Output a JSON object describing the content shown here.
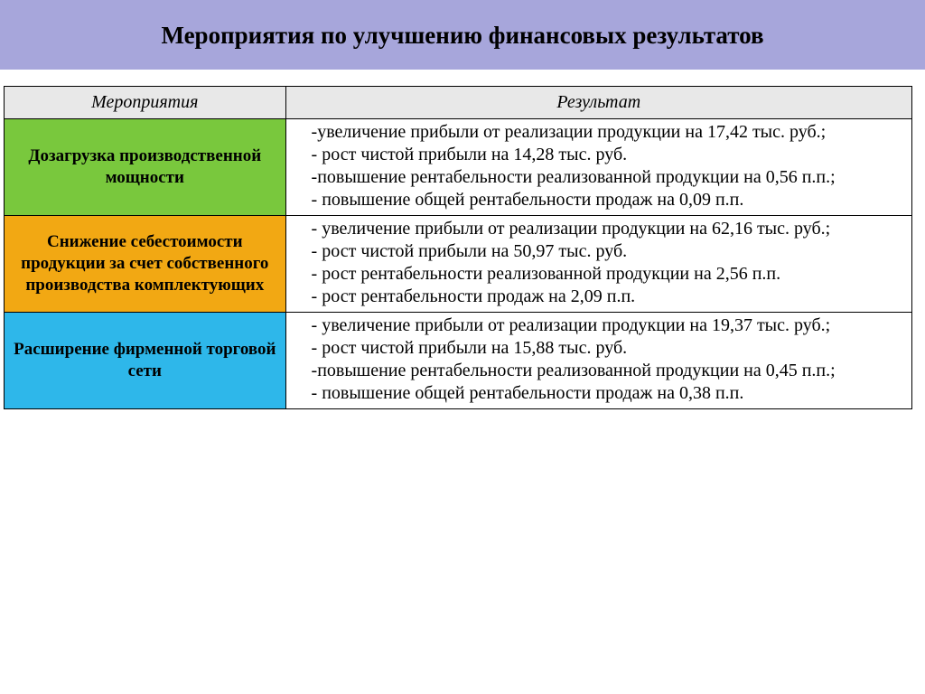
{
  "page": {
    "title": "Мероприятия по улучшению финансовых результатов",
    "title_bg": "#a7a6db",
    "header_bg": "#e8e8e8"
  },
  "table": {
    "columns": {
      "measures": "Мероприятия",
      "result": "Результат"
    },
    "rows": [
      {
        "measure": "Дозагрузка производственной мощности",
        "measure_bg": "#79c83d",
        "result_lines": [
          "-увеличение  прибыли  от  реализации  продукции  на    17,42  тыс. руб.;",
          "- рост чистой прибыли на 14,28 тыс. руб.",
          "-повышение  рентабельности  реализованной  продукции  на  0,56 п.п.;",
          "- повышение общей рентабельности продаж на  0,09 п.п."
        ]
      },
      {
        "measure": "Снижение себестоимости продукции за счет собственного производства комплектующих",
        "measure_bg": "#f2a813",
        "result_lines": [
          "- увеличение  прибыли  от  реализации  продукции  на  62,16  тыс. руб.;",
          "- рост чистой прибыли на 50,97 тыс. руб.",
          "-  рост  рентабельности  реализованной  продукции  на  2,56  п.п.",
          "- рост рентабельности продаж на 2,09 п.п."
        ]
      },
      {
        "measure": "Расширение фирменной торговой сети",
        "measure_bg": "#2eb7ea",
        "result_lines": [
          "- увеличение  прибыли  от  реализации  продукции  на  19,37  тыс. руб.;",
          "- рост чистой прибыли на 15,88 тыс. руб.",
          "-повышение  рентабельности  реализованной  продукции  на  0,45 п.п.;",
          "- повышение общей рентабельности продаж на  0,38 п.п."
        ]
      }
    ]
  }
}
